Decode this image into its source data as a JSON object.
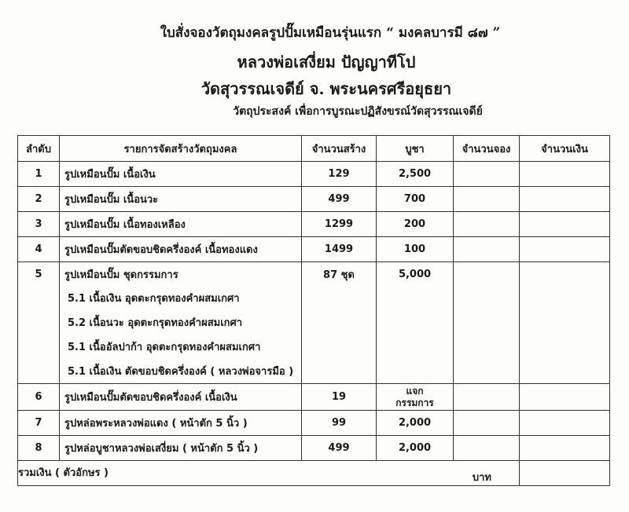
{
  "header": {
    "title": "ใบสั่งจองวัตถุมงคลรูปปั๊มเหมือนรุ่นแรก “ มงคลบารมี ๘๗ ”",
    "monk": "หลวงพ่อเสงี่ยม  ปัญญาทีโป",
    "temple": "วัดสุวรรณเจดีย์  จ. พระนครศรีอยุธยา",
    "purpose": "วัตถุประสงค์ เพื่อการบูรณะปฏิสังขรณ์วัดสุวรรณเจดีย์"
  },
  "table": {
    "columns": [
      "ลำดับ",
      "รายการจัดสร้างวัตถุมงคล",
      "จำนวนสร้าง",
      "บูชา",
      "จำนวนจอง",
      "จำนวนเงิน"
    ],
    "rows": [
      {
        "no": "1",
        "item": "รูปเหมือนปั๊ม เนื้อเงิน",
        "qty": "129",
        "price": "2,500"
      },
      {
        "no": "2",
        "item": "รูปเหมือนปั๊ม เนื้อนวะ",
        "qty": "499",
        "price": "700"
      },
      {
        "no": "3",
        "item": "รูปเหมือนปั๊ม เนื้อทองเหลือง",
        "qty": "1299",
        "price": "200"
      },
      {
        "no": "4",
        "item": "รูปเหมือนปั๊มตัดขอบชิดครึ่งองค์ เนื้อทองแดง",
        "qty": "1499",
        "price": "100"
      },
      {
        "no": "5",
        "item": "รูปเหมือนปั๊ม ชุดกรรมการ",
        "qty": "87  ชุด",
        "price": "5,000",
        "subitems": [
          "5.1  เนื้อเงิน อุดตะกรุดทองคำผสมเกศา",
          "5.2  เนื้อนวะ อุดตะกรุดทองคำผสมเกศา",
          "5.1  เนื้ออัลปาก้า อุดตะกรุดทองคำผสมเกศา",
          "5.1  เนื้อเงิน ตัดขอบชิดครึ่งองค์ ( หลวงพ่อจารมือ )"
        ]
      },
      {
        "no": "6",
        "item": "รูปเหมือนปั๊มตัดขอบชิดครึ่งองค์ เนื้อเงิน",
        "qty": "19",
        "price_line1": "แจก",
        "price_line2": "กรรมการ"
      },
      {
        "no": "7",
        "item": "รูปหล่อพระหลวงพ่อแดง  ( หน้าตัก 5 นิ้ว  )",
        "qty": "99",
        "price": "2,000"
      },
      {
        "no": "8",
        "item": "รูปหล่อบูชาหลวงพ่อเสงี่ยม  (  หน้าตัก 5 นิ้ว  )",
        "qty": "499",
        "price": "2,000"
      }
    ],
    "total_label": "รวมเงิน ( ตัวอักษร )",
    "currency": "บาท"
  }
}
